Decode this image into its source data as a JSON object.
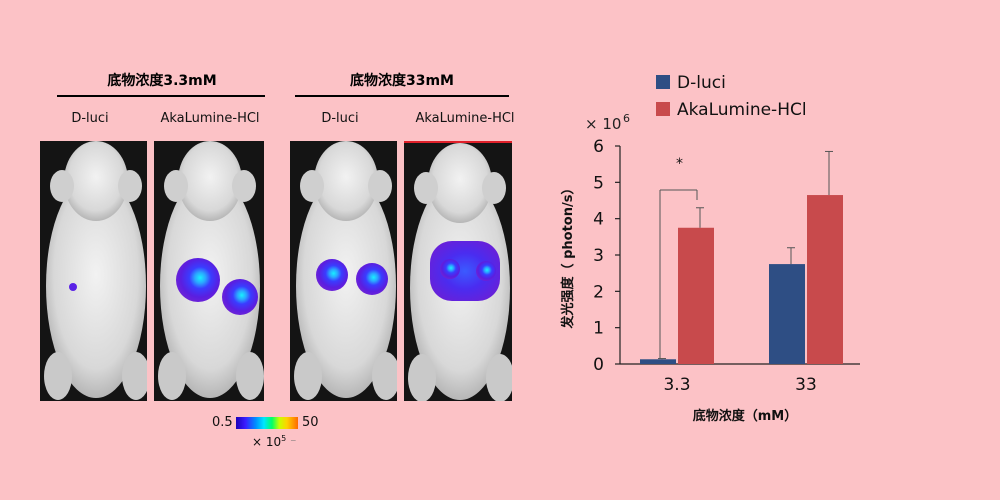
{
  "image_panel": {
    "groups": [
      {
        "title": "底物浓度3.3mM",
        "columns": [
          "D-luci",
          "AkaLumine-HCl"
        ]
      },
      {
        "title": "底物浓度33mM",
        "columns": [
          "D-luci",
          "AkaLumine-HCl"
        ]
      }
    ],
    "colorbar": {
      "min_label": "0.5",
      "max_label": "50",
      "unit": "× 10",
      "unit_exp": "5",
      "suffix": "⁻"
    }
  },
  "chart_data": {
    "type": "bar",
    "categories": [
      "3.3",
      "33"
    ],
    "series": [
      {
        "name": "D-luci",
        "color": "#2e4e84",
        "values": [
          0.13,
          2.75
        ],
        "errors": [
          0.02,
          0.45
        ]
      },
      {
        "name": "AkaLumine-HCl",
        "color": "#c84a4c",
        "values": [
          3.75,
          4.65
        ],
        "errors": [
          0.55,
          1.2
        ]
      }
    ],
    "ylim": [
      0,
      6
    ],
    "yticks": [
      "0",
      "1",
      "2",
      "3",
      "4",
      "5",
      "6"
    ],
    "y_multiplier": "× 10",
    "y_multiplier_exp": "6",
    "ylabel": "发光强度（ photon/s）",
    "xlabel": "底物浓度（mM）",
    "significance": {
      "label": "*",
      "between": [
        0,
        0
      ]
    }
  }
}
